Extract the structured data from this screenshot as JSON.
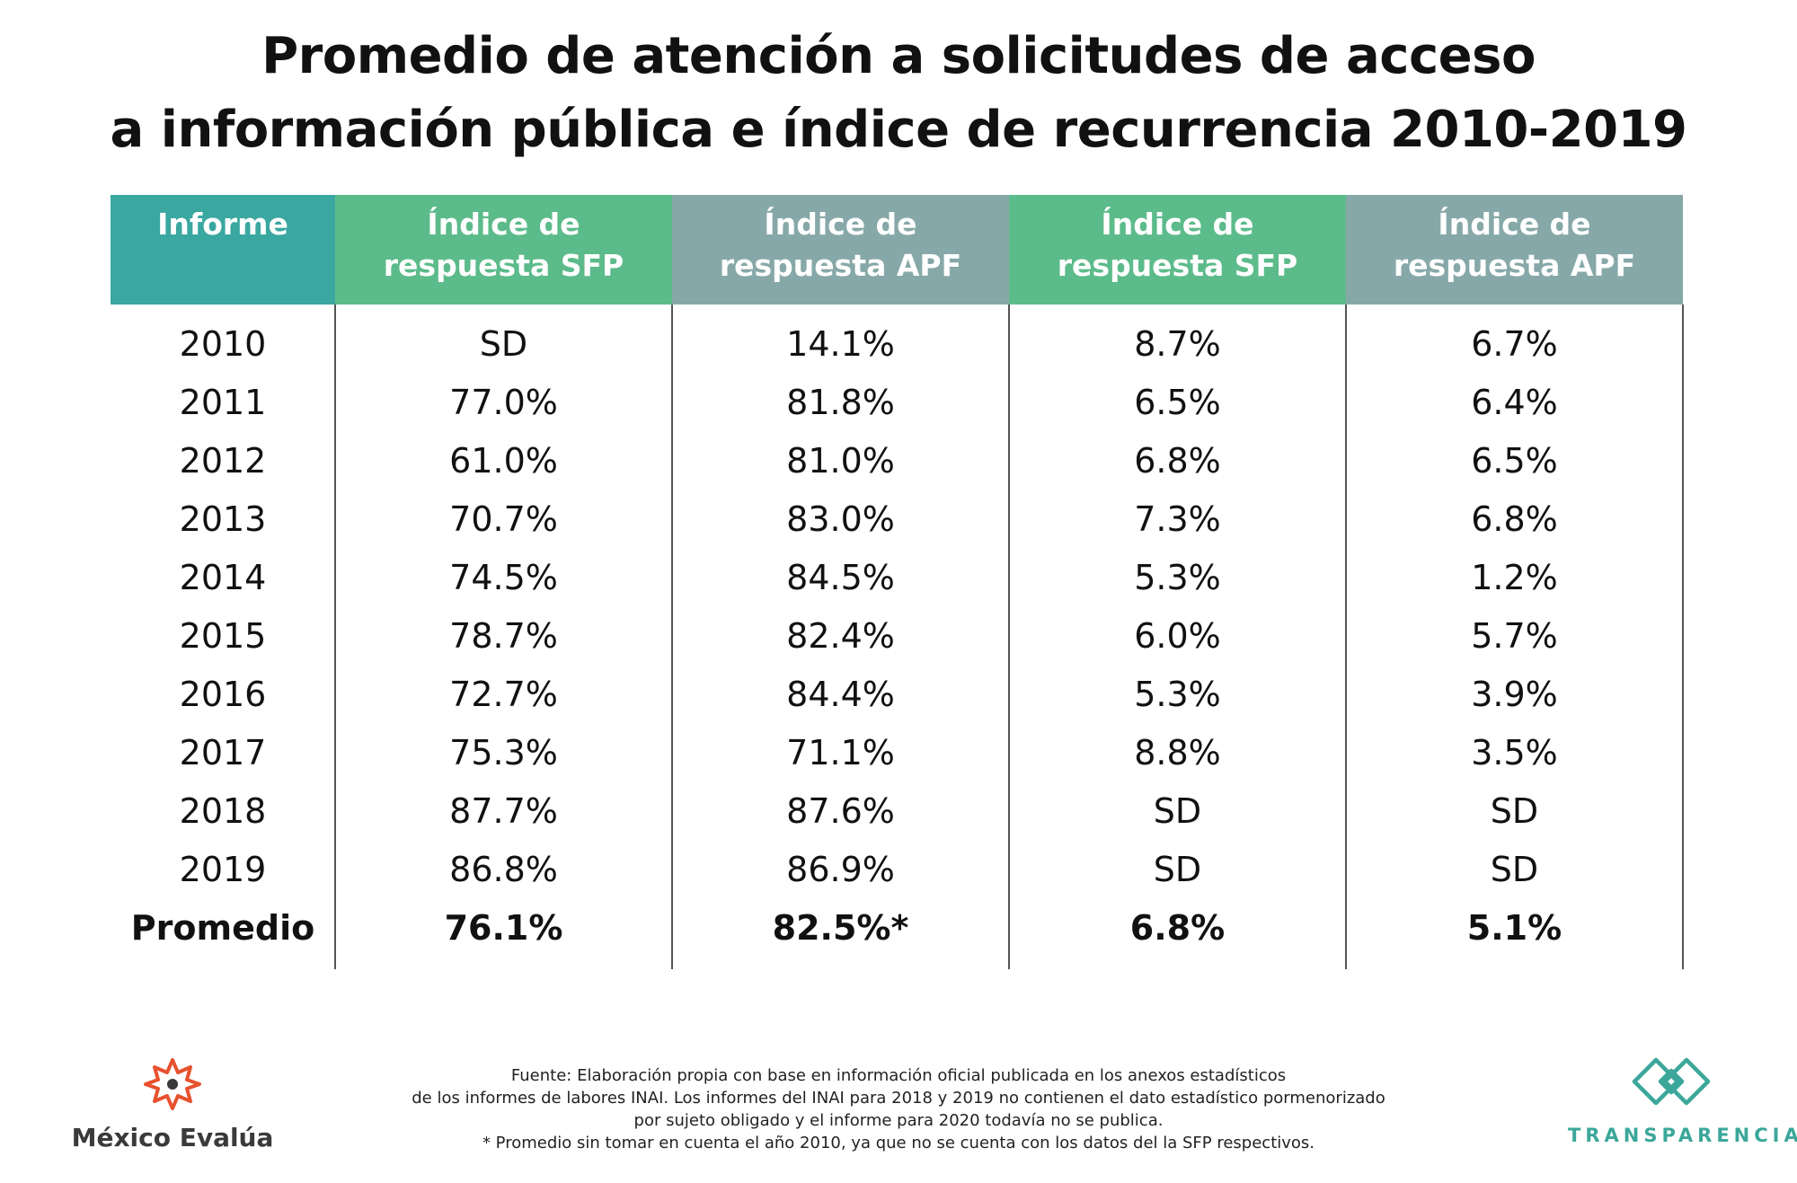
{
  "title": {
    "line1": "Promedio de atención a solicitudes de acceso",
    "line2": "a información pública e índice de recurrencia 2010-2019"
  },
  "colors": {
    "header_first": "#3aa7a0",
    "header_sfp": "#5cbb8a",
    "header_apf": "#87a8a8",
    "transparencia": "#3ba79a",
    "mexico_evalua_mark": "#e8512d"
  },
  "chart_data": {
    "type": "table",
    "columns": [
      "Informe",
      "Índice de\nrespuesta SFP",
      "Índice de\nrespuesta APF",
      "Índice de\nrespuesta SFP",
      "Índice de\nrespuesta APF"
    ],
    "rows": [
      [
        "2010",
        "SD",
        "14.1%",
        "8.7%",
        "6.7%"
      ],
      [
        "2011",
        "77.0%",
        "81.8%",
        "6.5%",
        "6.4%"
      ],
      [
        "2012",
        "61.0%",
        "81.0%",
        "6.8%",
        "6.5%"
      ],
      [
        "2013",
        "70.7%",
        "83.0%",
        "7.3%",
        "6.8%"
      ],
      [
        "2014",
        "74.5%",
        "84.5%",
        "5.3%",
        "1.2%"
      ],
      [
        "2015",
        "78.7%",
        "82.4%",
        "6.0%",
        "5.7%"
      ],
      [
        "2016",
        "72.7%",
        "84.4%",
        "5.3%",
        "3.9%"
      ],
      [
        "2017",
        "75.3%",
        "71.1%",
        "8.8%",
        "3.5%"
      ],
      [
        "2018",
        "87.7%",
        "87.6%",
        "SD",
        "SD"
      ],
      [
        "2019",
        "86.8%",
        "86.9%",
        "SD",
        "SD"
      ]
    ],
    "average_row": [
      "Promedio",
      "76.1%",
      "82.5%*",
      "6.8%",
      "5.1%"
    ]
  },
  "source": {
    "line1": "Fuente: Elaboración propia con base en información oficial publicada en los anexos estadísticos",
    "line2": "de los informes de labores INAI. Los informes del INAI para 2018 y 2019 no contienen el dato estadístico pormenorizado",
    "line3": "por sujeto obligado y el informe para 2020 todavía no se publica.",
    "line4": "* Promedio sin tomar en cuenta el año 2010, ya que no se cuenta con los datos del la SFP respectivos."
  },
  "logos": {
    "left": "México Evalúa",
    "right": "TRANSPARENCIA",
    "left_icon": "mexico-evalua-star-icon",
    "right_icon": "transparencia-diamond-icon"
  }
}
